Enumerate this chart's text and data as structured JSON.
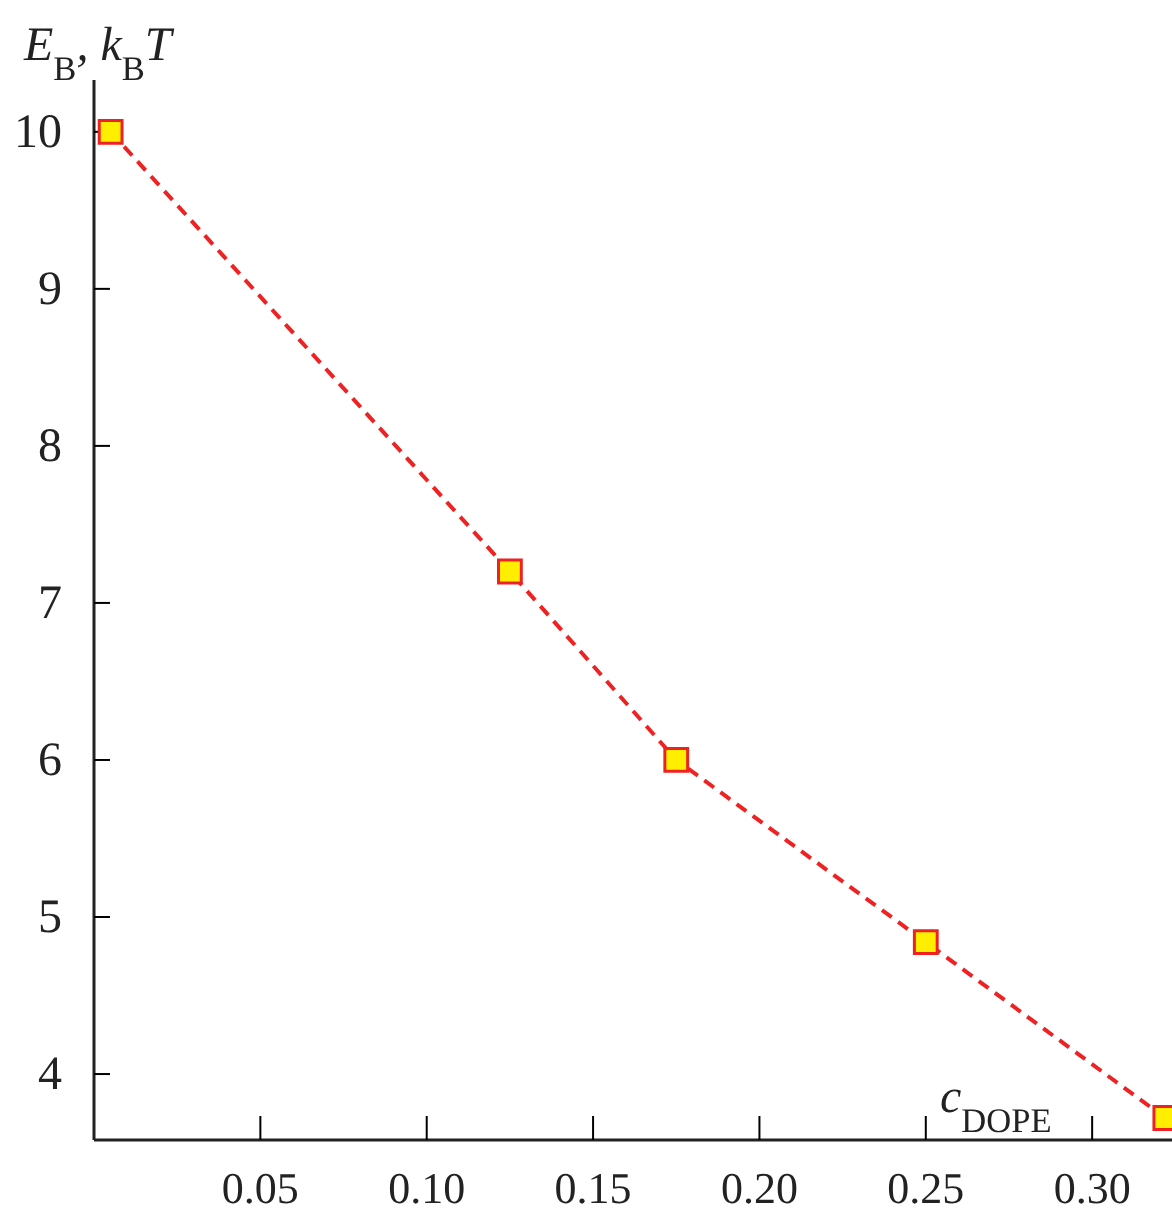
{
  "chart_data": {
    "type": "line",
    "xlabel": "c$_{DOPE}$",
    "ylabel": "E$_{B}$, k$_{B}$T",
    "x": [
      0.005,
      0.125,
      0.175,
      0.25,
      0.322
    ],
    "series": [
      {
        "color": "#ee2222",
        "values": [
          10.0,
          7.2,
          6.0,
          4.84,
          3.72
        ]
      }
    ],
    "xlim": [
      0,
      0.324
    ],
    "xticks": [
      0.05,
      {
        "value": 0.1,
        "label": "0.10"
      },
      0.15,
      {
        "value": 0.2,
        "label": "0.20"
      },
      0.25,
      {
        "value": 0.3,
        "label": "0.30"
      }
    ],
    "ylim": [
      3.58,
      10.33
    ],
    "yticks": [
      4,
      5,
      6,
      7,
      8,
      9,
      10
    ],
    "marker": "square",
    "line_style": "dashed"
  }
}
